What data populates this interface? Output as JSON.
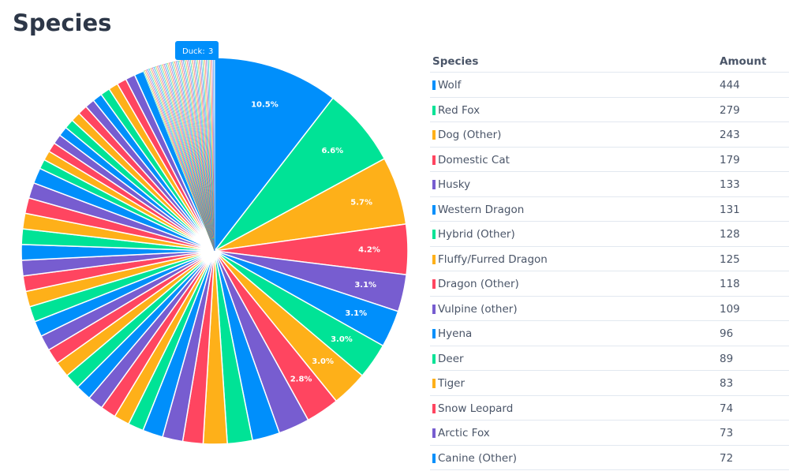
{
  "title": "Species",
  "tooltip": {
    "label": "Duck:",
    "value": 3
  },
  "chart_data": {
    "type": "pie",
    "colors": [
      "#008ffb",
      "#00e396",
      "#feb019",
      "#ff4560",
      "#775dd0"
    ],
    "values": [
      10.5,
      6.6,
      5.7,
      4.2,
      3.1,
      3.1,
      3.0,
      3.0,
      2.8,
      2.6,
      2.3,
      2.1,
      2.0,
      1.7,
      1.7,
      1.7,
      1.3,
      1.3,
      1.3,
      1.3,
      1.3,
      1.3,
      1.3,
      1.3,
      1.3,
      1.3,
      1.3,
      1.3,
      1.3,
      1.3,
      1.3,
      1.3,
      1.3,
      1.3,
      1.3,
      1.3,
      0.8,
      0.8,
      0.8,
      0.8,
      0.8,
      0.8,
      0.8,
      0.8,
      0.8,
      0.8,
      0.8,
      0.8,
      0.8,
      0.8,
      0.8,
      0.1,
      0.1,
      0.1,
      0.1,
      0.1,
      0.1,
      0.1,
      0.1,
      0.1,
      0.1,
      0.1,
      0.1,
      0.1,
      0.1,
      0.1,
      0.1,
      0.1,
      0.1,
      0.1,
      0.1,
      0.1,
      0.1,
      0.1,
      0.1,
      0.1,
      0.1,
      0.1,
      0.1,
      0.1,
      0.1,
      0.1,
      0.1,
      0.1,
      0.1,
      0.1,
      0.1,
      0.1,
      0.1,
      0.1,
      0.1,
      0.1,
      0.1,
      0.1,
      0.1,
      0.1,
      0.1,
      0.1,
      0.1,
      0.1,
      0.1,
      0.1,
      0.1,
      0.1,
      0.1,
      0.1,
      0.1,
      0.1,
      0.1,
      0.1,
      0.1
    ],
    "value_labels": [
      "10.5%",
      "6.6%",
      "5.7%",
      "4.2%",
      "3.1%",
      "3.1%",
      "3.0%",
      "3.0%",
      "2.8%",
      null,
      null,
      null,
      null,
      null,
      null,
      null,
      null,
      null,
      null,
      null,
      null,
      null,
      null,
      null,
      null,
      null,
      null,
      null,
      null,
      null,
      null,
      null,
      null,
      null,
      null,
      null,
      null,
      null,
      null,
      null,
      null,
      null,
      null,
      null,
      null,
      null,
      null,
      null,
      null,
      null,
      null,
      null,
      null,
      null,
      null,
      null,
      null,
      null,
      null,
      null,
      null,
      null,
      null,
      null,
      null,
      null,
      null,
      null,
      null,
      null,
      null,
      null,
      null,
      null,
      null,
      null,
      null,
      null,
      null,
      null,
      null,
      null,
      null,
      null,
      null,
      null,
      null,
      null,
      null,
      null,
      null,
      null,
      null,
      null,
      null,
      null,
      null,
      null,
      null,
      null,
      null,
      null,
      null,
      null,
      null,
      null,
      null,
      null,
      null,
      null,
      null
    ]
  },
  "table": {
    "headers": [
      "Species",
      "Amount"
    ],
    "rows": [
      [
        "Wolf",
        444
      ],
      [
        "Red Fox",
        279
      ],
      [
        "Dog (Other)",
        243
      ],
      [
        "Domestic Cat",
        179
      ],
      [
        "Husky",
        133
      ],
      [
        "Western Dragon",
        131
      ],
      [
        "Hybrid (Other)",
        128
      ],
      [
        "Fluffy/Furred Dragon",
        125
      ],
      [
        "Dragon (Other)",
        118
      ],
      [
        "Vulpine (other)",
        109
      ],
      [
        "Hyena",
        96
      ],
      [
        "Deer",
        89
      ],
      [
        "Tiger",
        83
      ],
      [
        "Snow Leopard",
        74
      ],
      [
        "Arctic Fox",
        73
      ],
      [
        "Canine (Other)",
        72
      ]
    ]
  }
}
